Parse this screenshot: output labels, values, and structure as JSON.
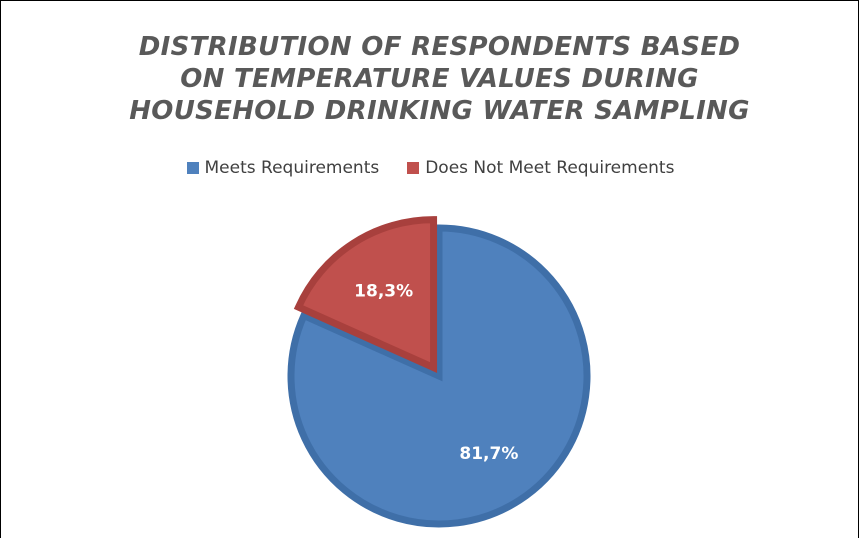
{
  "chart_data": {
    "type": "pie",
    "title_lines": [
      "DISTRIBUTION OF RESPONDENTS BASED",
      "ON TEMPERATURE VALUES DURING",
      "HOUSEHOLD DRINKING WATER SAMPLING"
    ],
    "categories": [
      "Meets Requirements",
      "Does Not Meet Requirements"
    ],
    "values": [
      81.7,
      18.3
    ],
    "data_labels": [
      "81,7%",
      "18,3%"
    ],
    "colors": [
      "#4F81BD",
      "#C0504D"
    ],
    "edge_colors": [
      "#3F6FA8",
      "#A8403D"
    ],
    "legend_position": "top"
  }
}
